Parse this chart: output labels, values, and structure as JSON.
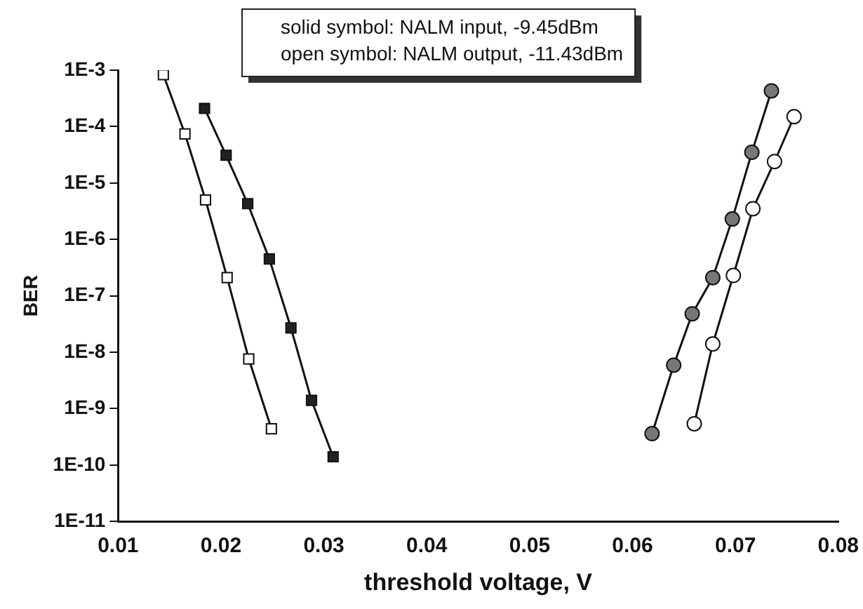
{
  "chart_data": {
    "type": "line",
    "xlabel": "threshold voltage, V",
    "ylabel": "BER",
    "log": "y",
    "grid": false,
    "legend": false,
    "xlim": [
      0.01,
      0.08
    ],
    "xticks": [
      0.01,
      0.02,
      0.03,
      0.04,
      0.05,
      0.06,
      0.07,
      0.08
    ],
    "ylim": [
      1e-11,
      0.001
    ],
    "yticks": [
      {
        "value": 1e-11,
        "label": "1E-11"
      },
      {
        "value": 1e-10,
        "label": "1E-10"
      },
      {
        "value": 1e-09,
        "label": "1E-9"
      },
      {
        "value": 1e-08,
        "label": "1E-8"
      },
      {
        "value": 1e-07,
        "label": "1E-7"
      },
      {
        "value": 1e-06,
        "label": "1E-6"
      },
      {
        "value": 1e-05,
        "label": "1E-5"
      },
      {
        "value": 0.0001,
        "label": "1E-4"
      },
      {
        "value": 0.001,
        "label": "1E-3"
      }
    ],
    "annotations": [
      "solid symbol: NALM input, -9.45dBm",
      "open symbol: NALM output, -11.43dBm"
    ],
    "series": [
      {
        "color": "#ffffff",
        "marker": "square",
        "x": [
          0.0144,
          0.0165,
          0.0185,
          0.0206,
          0.0227,
          0.0249
        ],
        "values": [
          0.00083,
          7.4e-05,
          5e-06,
          2.1e-07,
          7.6e-09,
          4.4e-10
        ]
      },
      {
        "color": "#222222",
        "marker": "square",
        "x": [
          0.0184,
          0.0205,
          0.0226,
          0.0247,
          0.0268,
          0.0288,
          0.0309
        ],
        "values": [
          0.00021,
          3.1e-05,
          4.3e-06,
          4.5e-07,
          2.7e-08,
          1.4e-09,
          1.4e-10
        ]
      },
      {
        "color": "#777777",
        "marker": "circle",
        "x": [
          0.0735,
          0.0716,
          0.0697,
          0.0678,
          0.0658,
          0.064,
          0.0619
        ],
        "values": [
          0.00043,
          3.5e-05,
          2.3e-06,
          2.1e-07,
          4.8e-08,
          5.9e-09,
          3.6e-10
        ]
      },
      {
        "color": "#ffffff",
        "marker": "circle",
        "x": [
          0.0757,
          0.0738,
          0.0717,
          0.0698,
          0.0678,
          0.066
        ],
        "values": [
          0.00015,
          2.4e-05,
          3.5e-06,
          2.3e-07,
          1.4e-08,
          5.4e-10
        ]
      }
    ]
  }
}
